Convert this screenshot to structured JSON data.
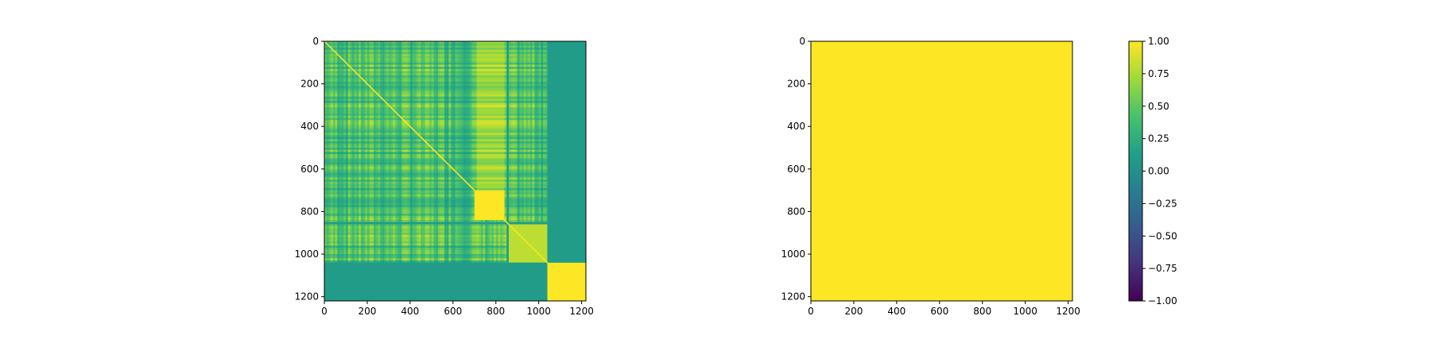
{
  "chart_data": [
    {
      "type": "heatmap",
      "title": "",
      "xlabel": "",
      "ylabel": "",
      "xlim": [
        0,
        1220
      ],
      "ylim": [
        1220,
        0
      ],
      "xticks": [
        0,
        200,
        400,
        600,
        800,
        1000,
        1200
      ],
      "yticks": [
        0,
        200,
        400,
        600,
        800,
        1000,
        1200
      ],
      "colormap": "viridis",
      "clim": [
        -1,
        1
      ],
      "description_values": {
        "diagonal": 1.0,
        "blocks": [
          {
            "x": [
              700,
              840
            ],
            "y": [
              700,
              840
            ],
            "value": 1.0
          },
          {
            "x": [
              860,
              1040
            ],
            "y": [
              860,
              1040
            ],
            "value": 0.8
          },
          {
            "x": [
              1040,
              1220
            ],
            "y": [
              1040,
              1220
            ],
            "value": 1.0
          },
          {
            "x": [
              1040,
              1220
            ],
            "y": [
              0,
              1040
            ],
            "value": 0.1
          },
          {
            "x": [
              0,
              1040
            ],
            "y": [
              1040,
              1220
            ],
            "value": 0.1
          }
        ]
      }
    },
    {
      "type": "heatmap",
      "title": "",
      "xlabel": "",
      "ylabel": "",
      "xlim": [
        0,
        1220
      ],
      "ylim": [
        1220,
        0
      ],
      "xticks": [
        0,
        200,
        400,
        600,
        800,
        1000,
        1200
      ],
      "yticks": [
        0,
        200,
        400,
        600,
        800,
        1000,
        1200
      ],
      "colormap": "viridis",
      "clim": [
        -1,
        1
      ],
      "uniform_value": 1.0
    }
  ],
  "colorbar": {
    "ticks": [
      1.0,
      0.75,
      0.5,
      0.25,
      0.0,
      -0.25,
      -0.5,
      -0.75,
      -1.0
    ],
    "tick_labels": [
      "1.00",
      "0.75",
      "0.50",
      "0.25",
      "0.00",
      "−0.25",
      "−0.50",
      "−0.75",
      "−1.00"
    ],
    "colors": [
      "#440154",
      "#46327e",
      "#365c8d",
      "#277f8e",
      "#1fa187",
      "#4ac16d",
      "#a0da39",
      "#fde725"
    ]
  }
}
